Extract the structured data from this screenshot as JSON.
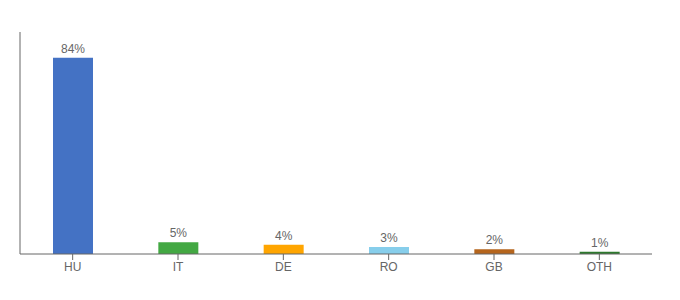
{
  "chart_data": {
    "type": "bar",
    "categories": [
      "HU",
      "IT",
      "DE",
      "RO",
      "GB",
      "OTH"
    ],
    "values": [
      84,
      5,
      4,
      3,
      2,
      1
    ],
    "value_labels": [
      "84%",
      "5%",
      "4%",
      "3%",
      "2%",
      "1%"
    ],
    "colors": [
      "#4472c4",
      "#43a843",
      "#ffa500",
      "#87ceeb",
      "#b5651d",
      "#2d7a2d"
    ],
    "ylim": [
      0,
      95
    ],
    "data_labels": true,
    "tick_labels": "x",
    "grid": false
  }
}
